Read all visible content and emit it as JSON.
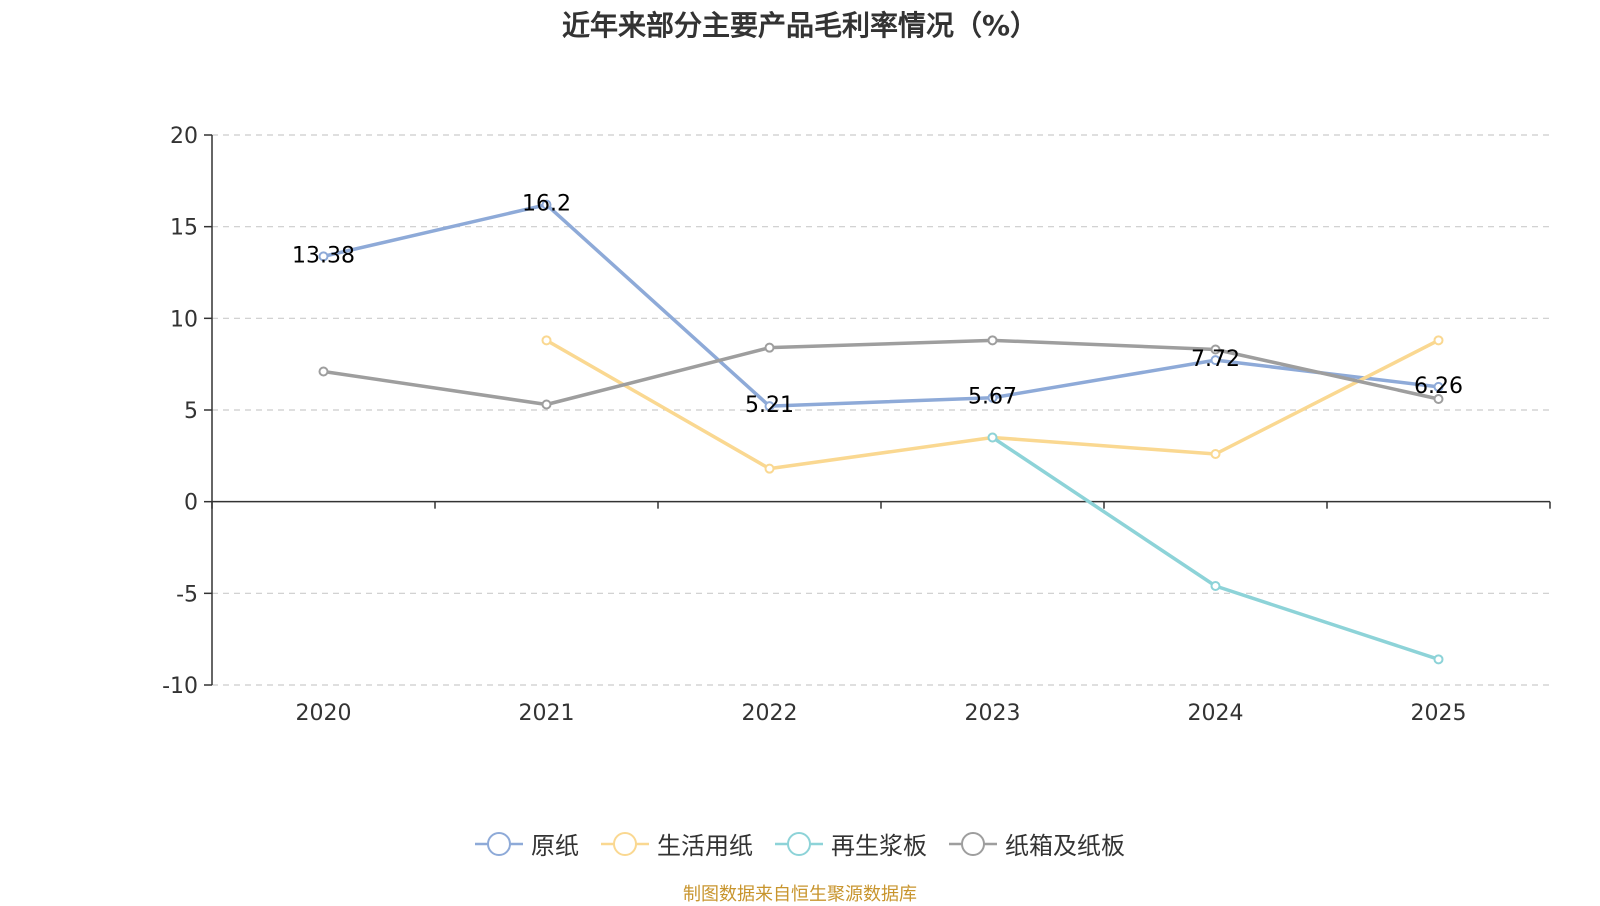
{
  "chart_data": {
    "type": "line",
    "title": "近年来部分主要产品毛利率情况（%）",
    "categories": [
      "2020",
      "2021",
      "2022",
      "2023",
      "2024",
      "2025"
    ],
    "ylim": [
      -10,
      20
    ],
    "yticks": [
      20,
      15,
      10,
      5,
      0,
      -5,
      -10
    ],
    "grid": true,
    "legend_position": "bottom-center",
    "series": [
      {
        "name": "原纸",
        "color": "#8eaad8",
        "values": [
          13.38,
          16.2,
          5.21,
          5.67,
          7.72,
          6.26
        ],
        "labels": [
          "13.38",
          "16.2",
          "5.21",
          "5.67",
          "7.72",
          "6.26"
        ]
      },
      {
        "name": "生活用纸",
        "color": "#fad891",
        "values": [
          null,
          8.8,
          1.8,
          3.5,
          2.6,
          8.8
        ],
        "labels": null
      },
      {
        "name": "再生浆板",
        "color": "#8dd3d8",
        "values": [
          null,
          null,
          null,
          3.5,
          -4.6,
          -8.6
        ],
        "labels": null
      },
      {
        "name": "纸箱及纸板",
        "color": "#9e9e9e",
        "values": [
          7.1,
          5.3,
          8.4,
          8.8,
          8.3,
          5.6
        ],
        "labels": null
      }
    ]
  },
  "source_note": "制图数据来自恒生聚源数据库"
}
